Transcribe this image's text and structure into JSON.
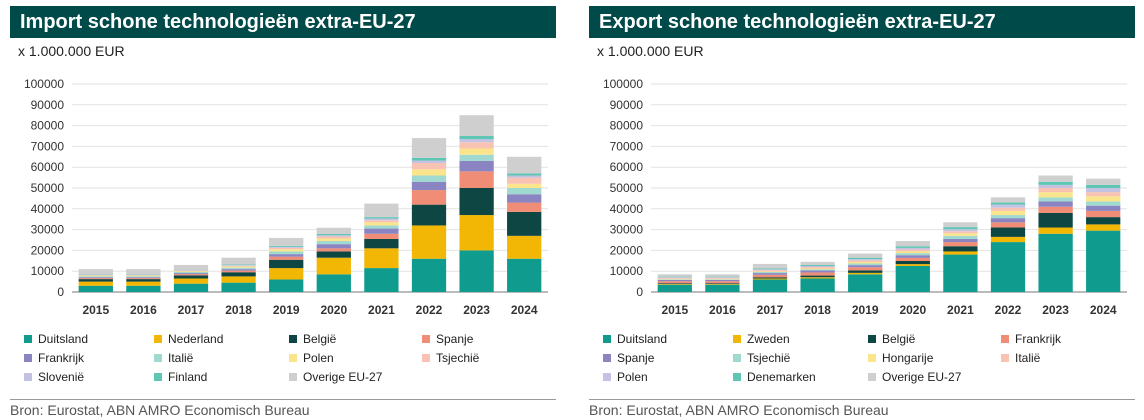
{
  "chart_data": [
    {
      "type": "bar",
      "stacked": true,
      "title": "Import schone technologieën extra-EU-27",
      "unit_label": "x 1.000.000 EUR",
      "source": "Bron: Eurostat, ABN AMRO Economisch Bureau",
      "categories": [
        "2015",
        "2016",
        "2017",
        "2018",
        "2019",
        "2020",
        "2021",
        "2022",
        "2023",
        "2024"
      ],
      "yticks": [
        "0",
        "10000",
        "20000",
        "30000",
        "40000",
        "50000",
        "60000",
        "70000",
        "80000",
        "90000",
        "100000"
      ],
      "ylim": [
        0,
        100000
      ],
      "grid": true,
      "legend_position": "bottom",
      "series": [
        {
          "name": "Duitsland",
          "color": "#0f9b8e",
          "values": [
            3000,
            3000,
            4000,
            4500,
            6000,
            8500,
            11500,
            16000,
            20000,
            16000
          ]
        },
        {
          "name": "Nederland",
          "color": "#f2b705",
          "values": [
            2000,
            2000,
            2500,
            3000,
            5500,
            8000,
            9500,
            16000,
            17000,
            11000
          ]
        },
        {
          "name": "België",
          "color": "#0d4643",
          "values": [
            1200,
            1200,
            1500,
            2000,
            4000,
            3000,
            4500,
            10000,
            13000,
            11500
          ]
        },
        {
          "name": "Spanje",
          "color": "#ef8d76",
          "values": [
            500,
            500,
            600,
            800,
            1500,
            1500,
            2500,
            7000,
            8000,
            4500
          ]
        },
        {
          "name": "Frankrijk",
          "color": "#8a84c2",
          "values": [
            400,
            400,
            500,
            700,
            1200,
            2000,
            2500,
            4000,
            5000,
            4000
          ]
        },
        {
          "name": "Italië",
          "color": "#9fd9cf",
          "values": [
            500,
            500,
            500,
            700,
            1300,
            1500,
            1500,
            3000,
            3000,
            3000
          ]
        },
        {
          "name": "Polen",
          "color": "#fbe58c",
          "values": [
            300,
            300,
            400,
            500,
            1000,
            1200,
            1500,
            3000,
            3000,
            2000
          ]
        },
        {
          "name": "Tsjechië",
          "color": "#f8c3b2",
          "values": [
            300,
            300,
            300,
            400,
            700,
            1000,
            1000,
            3000,
            3000,
            3000
          ]
        },
        {
          "name": "Slovenië",
          "color": "#c4c2e2",
          "values": [
            200,
            200,
            200,
            300,
            500,
            600,
            800,
            1200,
            1500,
            1000
          ]
        },
        {
          "name": "Finland",
          "color": "#5dc6b4",
          "values": [
            200,
            200,
            200,
            300,
            500,
            600,
            700,
            1300,
            1500,
            1000
          ]
        },
        {
          "name": "Overige EU-27",
          "color": "#cfcfcf",
          "values": [
            2400,
            2400,
            2300,
            3300,
            3800,
            3000,
            6500,
            9500,
            10000,
            8000
          ]
        }
      ]
    },
    {
      "type": "bar",
      "stacked": true,
      "title": "Export schone technologieën extra-EU-27",
      "unit_label": "x 1.000.000 EUR",
      "source": "Bron: Eurostat, ABN AMRO Economisch Bureau",
      "categories": [
        "2015",
        "2016",
        "2017",
        "2018",
        "2019",
        "2020",
        "2021",
        "2022",
        "2023",
        "2024"
      ],
      "yticks": [
        "0",
        "10000",
        "20000",
        "30000",
        "40000",
        "50000",
        "60000",
        "70000",
        "80000",
        "90000",
        "100000"
      ],
      "ylim": [
        0,
        100000
      ],
      "grid": true,
      "legend_position": "bottom",
      "series": [
        {
          "name": "Duitsland",
          "color": "#0f9b8e",
          "values": [
            3500,
            3500,
            6000,
            6500,
            8500,
            12500,
            18000,
            24000,
            28000,
            29500
          ]
        },
        {
          "name": "Zweden",
          "color": "#f2b705",
          "values": [
            300,
            300,
            500,
            600,
            700,
            900,
            1500,
            2500,
            3000,
            3000
          ]
        },
        {
          "name": "België",
          "color": "#0d4643",
          "values": [
            400,
            400,
            600,
            800,
            1200,
            1500,
            2500,
            4500,
            7000,
            3500
          ]
        },
        {
          "name": "Frankrijk",
          "color": "#ef8d76",
          "values": [
            1000,
            1000,
            1200,
            1500,
            1500,
            1500,
            2000,
            2500,
            3000,
            3000
          ]
        },
        {
          "name": "Spanje",
          "color": "#8a84c2",
          "values": [
            600,
            600,
            800,
            1000,
            1000,
            1300,
            1500,
            2000,
            2500,
            2500
          ]
        },
        {
          "name": "Tsjechië",
          "color": "#9fd9cf",
          "values": [
            300,
            300,
            500,
            500,
            800,
            1000,
            1500,
            1500,
            2000,
            2000
          ]
        },
        {
          "name": "Hongarije",
          "color": "#fbe58c",
          "values": [
            200,
            200,
            300,
            400,
            700,
            800,
            1200,
            2000,
            2500,
            2500
          ]
        },
        {
          "name": "Italië",
          "color": "#f8c3b2",
          "values": [
            500,
            500,
            600,
            700,
            800,
            900,
            1000,
            1500,
            2000,
            2000
          ]
        },
        {
          "name": "Polen",
          "color": "#c4c2e2",
          "values": [
            300,
            300,
            400,
            500,
            600,
            800,
            1000,
            1500,
            1500,
            2000
          ]
        },
        {
          "name": "Denemarken",
          "color": "#5dc6b4",
          "values": [
            300,
            300,
            400,
            500,
            700,
            800,
            1000,
            1000,
            1500,
            1500
          ]
        },
        {
          "name": "Overige EU-27",
          "color": "#cfcfcf",
          "values": [
            1100,
            1100,
            2200,
            1500,
            2000,
            2500,
            2300,
            2500,
            3000,
            3000
          ]
        }
      ]
    }
  ]
}
